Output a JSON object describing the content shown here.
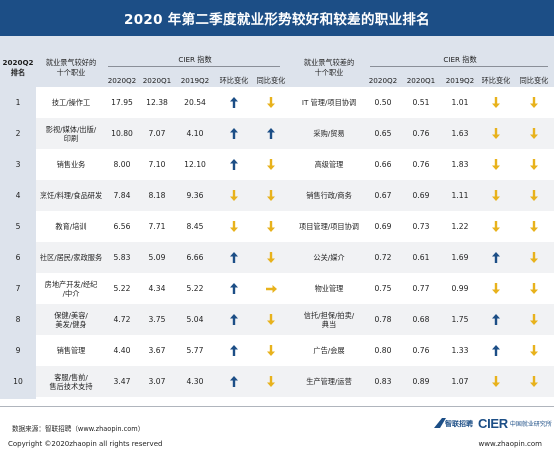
{
  "title": "2020 年第二季度就业形势较好和较差的职业排名",
  "header": {
    "rank_year": "2020Q2",
    "rank_label": "排名",
    "good_occ_line1": "就业景气较好的",
    "good_occ_line2": "十个职业",
    "bad_occ_line1": "就业景气较差的",
    "bad_occ_line2": "十个职业",
    "cier_index": "CIER 指数",
    "col_2020q2": "2020Q2",
    "col_2020q1": "2020Q1",
    "col_2019q2": "2019Q2",
    "col_qoq": "环比变化",
    "col_yoy": "同比变化"
  },
  "rows": [
    {
      "rank": "1",
      "good": [
        "技工/操作工"
      ],
      "g_q2": "17.95",
      "g_q1": "12.38",
      "g_ly": "20.54",
      "g_qoq": "up",
      "g_yoy": "down",
      "bad": [
        "IT 管理/项目协调"
      ],
      "b_q2": "0.50",
      "b_q1": "0.51",
      "b_ly": "1.01",
      "b_qoq": "down",
      "b_yoy": "down"
    },
    {
      "rank": "2",
      "good": [
        "影视/媒体/出版/",
        "印刷"
      ],
      "g_q2": "10.80",
      "g_q1": "7.07",
      "g_ly": "4.10",
      "g_qoq": "up",
      "g_yoy": "up",
      "bad": [
        "采购/贸易"
      ],
      "b_q2": "0.65",
      "b_q1": "0.76",
      "b_ly": "1.63",
      "b_qoq": "down",
      "b_yoy": "down"
    },
    {
      "rank": "3",
      "good": [
        "销售业务"
      ],
      "g_q2": "8.00",
      "g_q1": "7.10",
      "g_ly": "12.10",
      "g_qoq": "up",
      "g_yoy": "down",
      "bad": [
        "高级管理"
      ],
      "b_q2": "0.66",
      "b_q1": "0.76",
      "b_ly": "1.83",
      "b_qoq": "down",
      "b_yoy": "down"
    },
    {
      "rank": "4",
      "good": [
        "烹饪/料理/食品研发"
      ],
      "g_q2": "7.84",
      "g_q1": "8.18",
      "g_ly": "9.36",
      "g_qoq": "down",
      "g_yoy": "down",
      "bad": [
        "销售行政/商务"
      ],
      "b_q2": "0.67",
      "b_q1": "0.69",
      "b_ly": "1.11",
      "b_qoq": "down",
      "b_yoy": "down"
    },
    {
      "rank": "5",
      "good": [
        "教育/培训"
      ],
      "g_q2": "6.56",
      "g_q1": "7.71",
      "g_ly": "8.45",
      "g_qoq": "down",
      "g_yoy": "down",
      "bad": [
        "项目管理/项目协调"
      ],
      "b_q2": "0.69",
      "b_q1": "0.73",
      "b_ly": "1.22",
      "b_qoq": "down",
      "b_yoy": "down"
    },
    {
      "rank": "6",
      "good": [
        "社区/居民/家政服务"
      ],
      "g_q2": "5.83",
      "g_q1": "5.09",
      "g_ly": "6.66",
      "g_qoq": "up",
      "g_yoy": "down",
      "bad": [
        "公关/媒介"
      ],
      "b_q2": "0.72",
      "b_q1": "0.61",
      "b_ly": "1.69",
      "b_qoq": "up",
      "b_yoy": "down"
    },
    {
      "rank": "7",
      "good": [
        "房地产开发/经纪",
        "/中介"
      ],
      "g_q2": "5.22",
      "g_q1": "4.34",
      "g_ly": "5.22",
      "g_qoq": "up",
      "g_yoy": "flat",
      "bad": [
        "物业管理"
      ],
      "b_q2": "0.75",
      "b_q1": "0.77",
      "b_ly": "0.99",
      "b_qoq": "down",
      "b_yoy": "down"
    },
    {
      "rank": "8",
      "good": [
        "保健/美容/",
        "美发/健身"
      ],
      "g_q2": "4.72",
      "g_q1": "3.75",
      "g_ly": "5.04",
      "g_qoq": "up",
      "g_yoy": "down",
      "bad": [
        "信托/担保/拍卖/",
        "典当"
      ],
      "b_q2": "0.78",
      "b_q1": "0.68",
      "b_ly": "1.75",
      "b_qoq": "up",
      "b_yoy": "down"
    },
    {
      "rank": "9",
      "good": [
        "销售管理"
      ],
      "g_q2": "4.40",
      "g_q1": "3.67",
      "g_ly": "5.77",
      "g_qoq": "up",
      "g_yoy": "down",
      "bad": [
        "广告/会展"
      ],
      "b_q2": "0.80",
      "b_q1": "0.76",
      "b_ly": "1.33",
      "b_qoq": "up",
      "b_yoy": "down"
    },
    {
      "rank": "10",
      "good": [
        "客服/售前/",
        "售后技术支持"
      ],
      "g_q2": "3.47",
      "g_q1": "3.07",
      "g_ly": "4.30",
      "g_qoq": "up",
      "g_yoy": "down",
      "bad": [
        "生产管理/运营"
      ],
      "b_q2": "0.83",
      "b_q1": "0.89",
      "b_ly": "1.07",
      "b_qoq": "down",
      "b_yoy": "down"
    }
  ],
  "arrow_colors": {
    "up": "#1c4e86",
    "down": "#e8b21c",
    "flat": "#e8b21c"
  },
  "footer": {
    "source": "数据来源：智联招聘（www.zhaopin.com）",
    "copyright": "Copyright ©2020zhaopin all rights reserved",
    "site": "www.zhaopin.com",
    "logo_zhaopin_text": "智联招聘",
    "logo_cier_mark": "CIER",
    "logo_cier_text": "中国就业研究所"
  }
}
